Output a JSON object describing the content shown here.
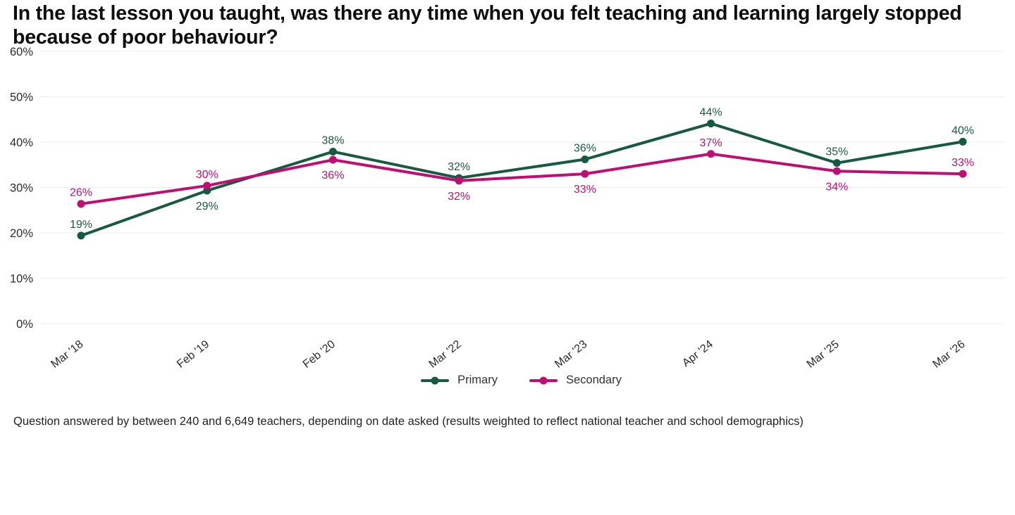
{
  "page": {
    "background": "#ffffff"
  },
  "header": {
    "title": "In the last lesson you taught, was there any time when you felt teaching and learning largely stopped because of poor behaviour?"
  },
  "footnote": "Question answered by between 240 and 6,649 teachers, depending on date asked (results weighted to reflect national teacher and school demographics)",
  "legend": {
    "items": [
      {
        "label": "Primary"
      },
      {
        "label": "Secondary"
      }
    ]
  },
  "colors": {
    "grid": "#ededed",
    "axis_text": "#2b2b2b",
    "title_text": "#0d0d0d",
    "footnote_text": "#222222",
    "legend_text": "#333333",
    "primary": "#175a42",
    "secondary": "#c00d73"
  },
  "chart_data": {
    "type": "line",
    "title": "In the last lesson you taught, was there any time when you felt teaching and learning largely stopped because of poor behaviour?",
    "categories": [
      "Mar '18",
      "Feb '19",
      "Feb '20",
      "Mar '22",
      "Mar '23",
      "Apr '24",
      "Mar '25",
      "Mar '26"
    ],
    "series": [
      {
        "name": "Primary",
        "color": "#175a42",
        "values": [
          19,
          29,
          38,
          32,
          36,
          44,
          35,
          40
        ],
        "plot_values": [
          19.4,
          29.3,
          37.9,
          32.1,
          36.2,
          44.1,
          35.4,
          40.1
        ],
        "labels": [
          "19%",
          "29%",
          "38%",
          "32%",
          "36%",
          "44%",
          "35%",
          "40%"
        ],
        "label_positions": [
          "above",
          "below",
          "above",
          "above",
          "above",
          "above",
          "above",
          "above"
        ]
      },
      {
        "name": "Secondary",
        "color": "#c00d73",
        "values": [
          26,
          30,
          36,
          32,
          33,
          37,
          34,
          33
        ],
        "plot_values": [
          26.4,
          30.4,
          36.1,
          31.5,
          33.0,
          37.4,
          33.6,
          33.0
        ],
        "labels": [
          "26%",
          "30%",
          "36%",
          "32%",
          "33%",
          "37%",
          "34%",
          "33%"
        ],
        "label_positions": [
          "above",
          "above",
          "below",
          "below",
          "below",
          "above",
          "below",
          "above"
        ]
      }
    ],
    "xlabel": "",
    "ylabel": "",
    "ylim": [
      0,
      60
    ],
    "yticks": [
      "0%",
      "10%",
      "20%",
      "30%",
      "40%",
      "50%",
      "60%"
    ],
    "ytick_step": 10,
    "grid": "horizontal",
    "legend_position": "bottom-center",
    "x_tick_rotation_deg": -38
  }
}
